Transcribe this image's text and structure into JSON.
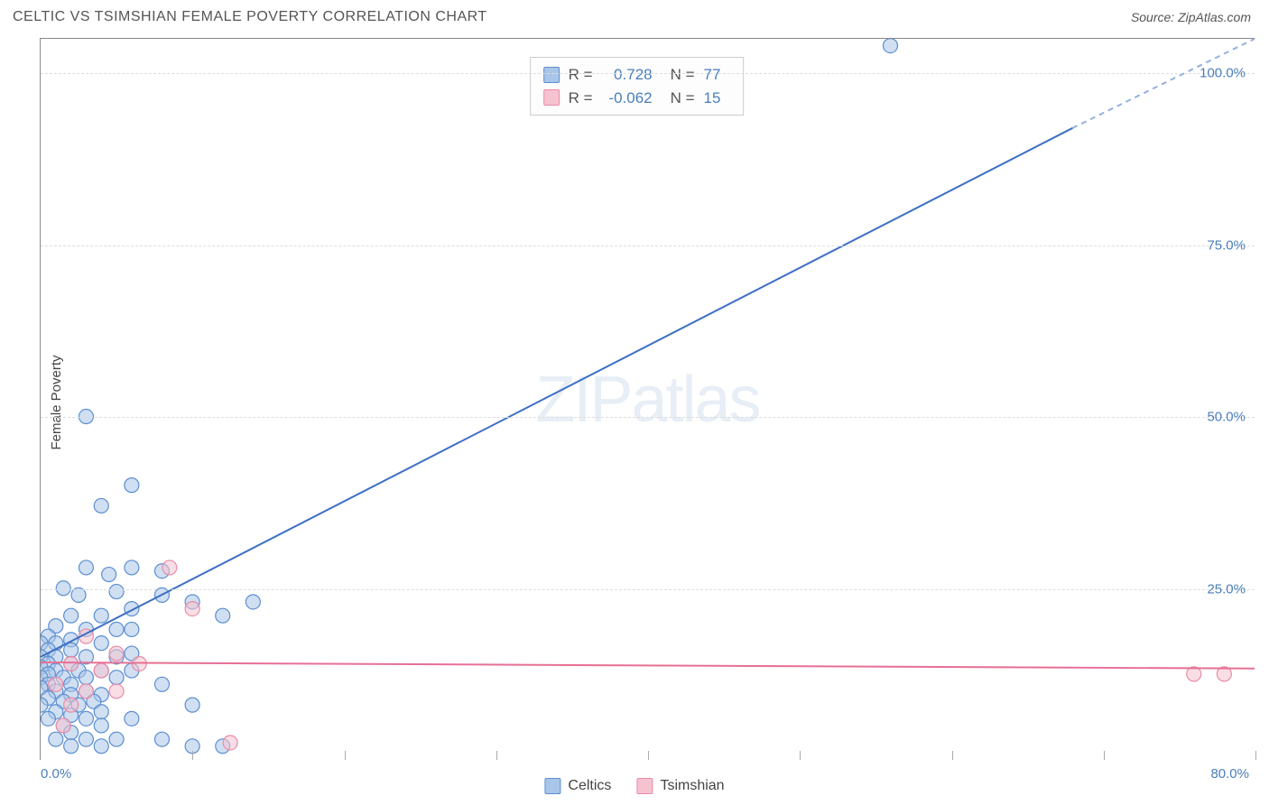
{
  "title": "CELTIC VS TSIMSHIAN FEMALE POVERTY CORRELATION CHART",
  "source": "Source: ZipAtlas.com",
  "ylabel": "Female Poverty",
  "watermark_zip": "ZIP",
  "watermark_atlas": "atlas",
  "chart": {
    "type": "scatter",
    "background_color": "#ffffff",
    "grid_color": "#dddddd",
    "axis_color": "#888888",
    "xlim": [
      0,
      80
    ],
    "ylim": [
      0,
      105
    ],
    "xtick_start_label": "0.0%",
    "xtick_end_label": "80.0%",
    "xtick_positions": [
      0,
      10,
      20,
      30,
      40,
      50,
      60,
      70,
      80
    ],
    "ytick_labels": [
      "25.0%",
      "50.0%",
      "75.0%",
      "100.0%"
    ],
    "ytick_values": [
      25,
      50,
      75,
      100
    ],
    "label_color": "#4a7ebb",
    "ylabel_color": "#444444"
  },
  "series": {
    "celtics": {
      "label": "Celtics",
      "fill_color": "#a9c5e8",
      "stroke_color": "#5b8fd1",
      "fill_opacity": 0.55,
      "line_color": "#3c6fc5",
      "line_width": 2,
      "marker_radius": 8,
      "R": 0.728,
      "N": 77,
      "regression": {
        "x1": 0,
        "y1": 15,
        "x2": 68,
        "y2": 92,
        "dash_x2": 80,
        "dash_y2": 105
      },
      "points": [
        [
          56,
          104
        ],
        [
          3,
          50
        ],
        [
          6,
          40
        ],
        [
          4,
          37
        ],
        [
          3,
          28
        ],
        [
          6,
          28
        ],
        [
          8,
          27.5
        ],
        [
          4.5,
          27
        ],
        [
          5,
          24.5
        ],
        [
          1.5,
          25
        ],
        [
          2.5,
          24
        ],
        [
          8,
          24
        ],
        [
          6,
          22
        ],
        [
          10,
          23
        ],
        [
          14,
          23
        ],
        [
          12,
          21
        ],
        [
          2,
          21
        ],
        [
          4,
          21
        ],
        [
          1,
          19.5
        ],
        [
          3,
          19
        ],
        [
          5,
          19
        ],
        [
          6,
          19
        ],
        [
          0.5,
          18
        ],
        [
          2,
          17.5
        ],
        [
          0,
          17
        ],
        [
          1,
          17
        ],
        [
          4,
          17
        ],
        [
          0.5,
          16
        ],
        [
          2,
          16
        ],
        [
          6,
          15.5
        ],
        [
          0,
          15
        ],
        [
          1,
          15
        ],
        [
          3,
          15
        ],
        [
          5,
          15
        ],
        [
          0.5,
          14
        ],
        [
          2,
          14
        ],
        [
          0,
          13.5
        ],
        [
          1,
          13
        ],
        [
          2.5,
          13
        ],
        [
          4,
          13
        ],
        [
          6,
          13
        ],
        [
          0.5,
          12.5
        ],
        [
          0,
          12
        ],
        [
          1.5,
          12
        ],
        [
          3,
          12
        ],
        [
          5,
          12
        ],
        [
          8,
          11
        ],
        [
          0.5,
          11
        ],
        [
          2,
          11
        ],
        [
          0,
          10.5
        ],
        [
          1,
          10
        ],
        [
          3,
          10
        ],
        [
          2,
          9.5
        ],
        [
          4,
          9.5
        ],
        [
          0.5,
          9
        ],
        [
          1.5,
          8.5
        ],
        [
          3.5,
          8.5
        ],
        [
          0,
          8
        ],
        [
          2.5,
          8
        ],
        [
          10,
          8
        ],
        [
          1,
          7
        ],
        [
          4,
          7
        ],
        [
          2,
          6.5
        ],
        [
          0.5,
          6
        ],
        [
          3,
          6
        ],
        [
          6,
          6
        ],
        [
          1.5,
          5
        ],
        [
          4,
          5
        ],
        [
          2,
          4
        ],
        [
          1,
          3
        ],
        [
          3,
          3
        ],
        [
          5,
          3
        ],
        [
          8,
          3
        ],
        [
          2,
          2
        ],
        [
          4,
          2
        ],
        [
          10,
          2
        ],
        [
          12,
          2
        ]
      ]
    },
    "tsimshian": {
      "label": "Tsimshian",
      "fill_color": "#f5c2d0",
      "stroke_color": "#e88ba6",
      "fill_opacity": 0.55,
      "line_color": "#e77094",
      "line_width": 2,
      "marker_radius": 8,
      "R": -0.062,
      "N": 15,
      "regression": {
        "x1": 0,
        "y1": 14.2,
        "x2": 80,
        "y2": 13.3
      },
      "points": [
        [
          76,
          12.5
        ],
        [
          78,
          12.5
        ],
        [
          8.5,
          28
        ],
        [
          10,
          22
        ],
        [
          3,
          18
        ],
        [
          5,
          15.5
        ],
        [
          6.5,
          14
        ],
        [
          2,
          14
        ],
        [
          4,
          13
        ],
        [
          1,
          11
        ],
        [
          3,
          10
        ],
        [
          5,
          10
        ],
        [
          2,
          8
        ],
        [
          1.5,
          5
        ],
        [
          12.5,
          2.5
        ]
      ]
    }
  },
  "legend_stats": {
    "r_label": "R =",
    "n_label": "N ="
  }
}
